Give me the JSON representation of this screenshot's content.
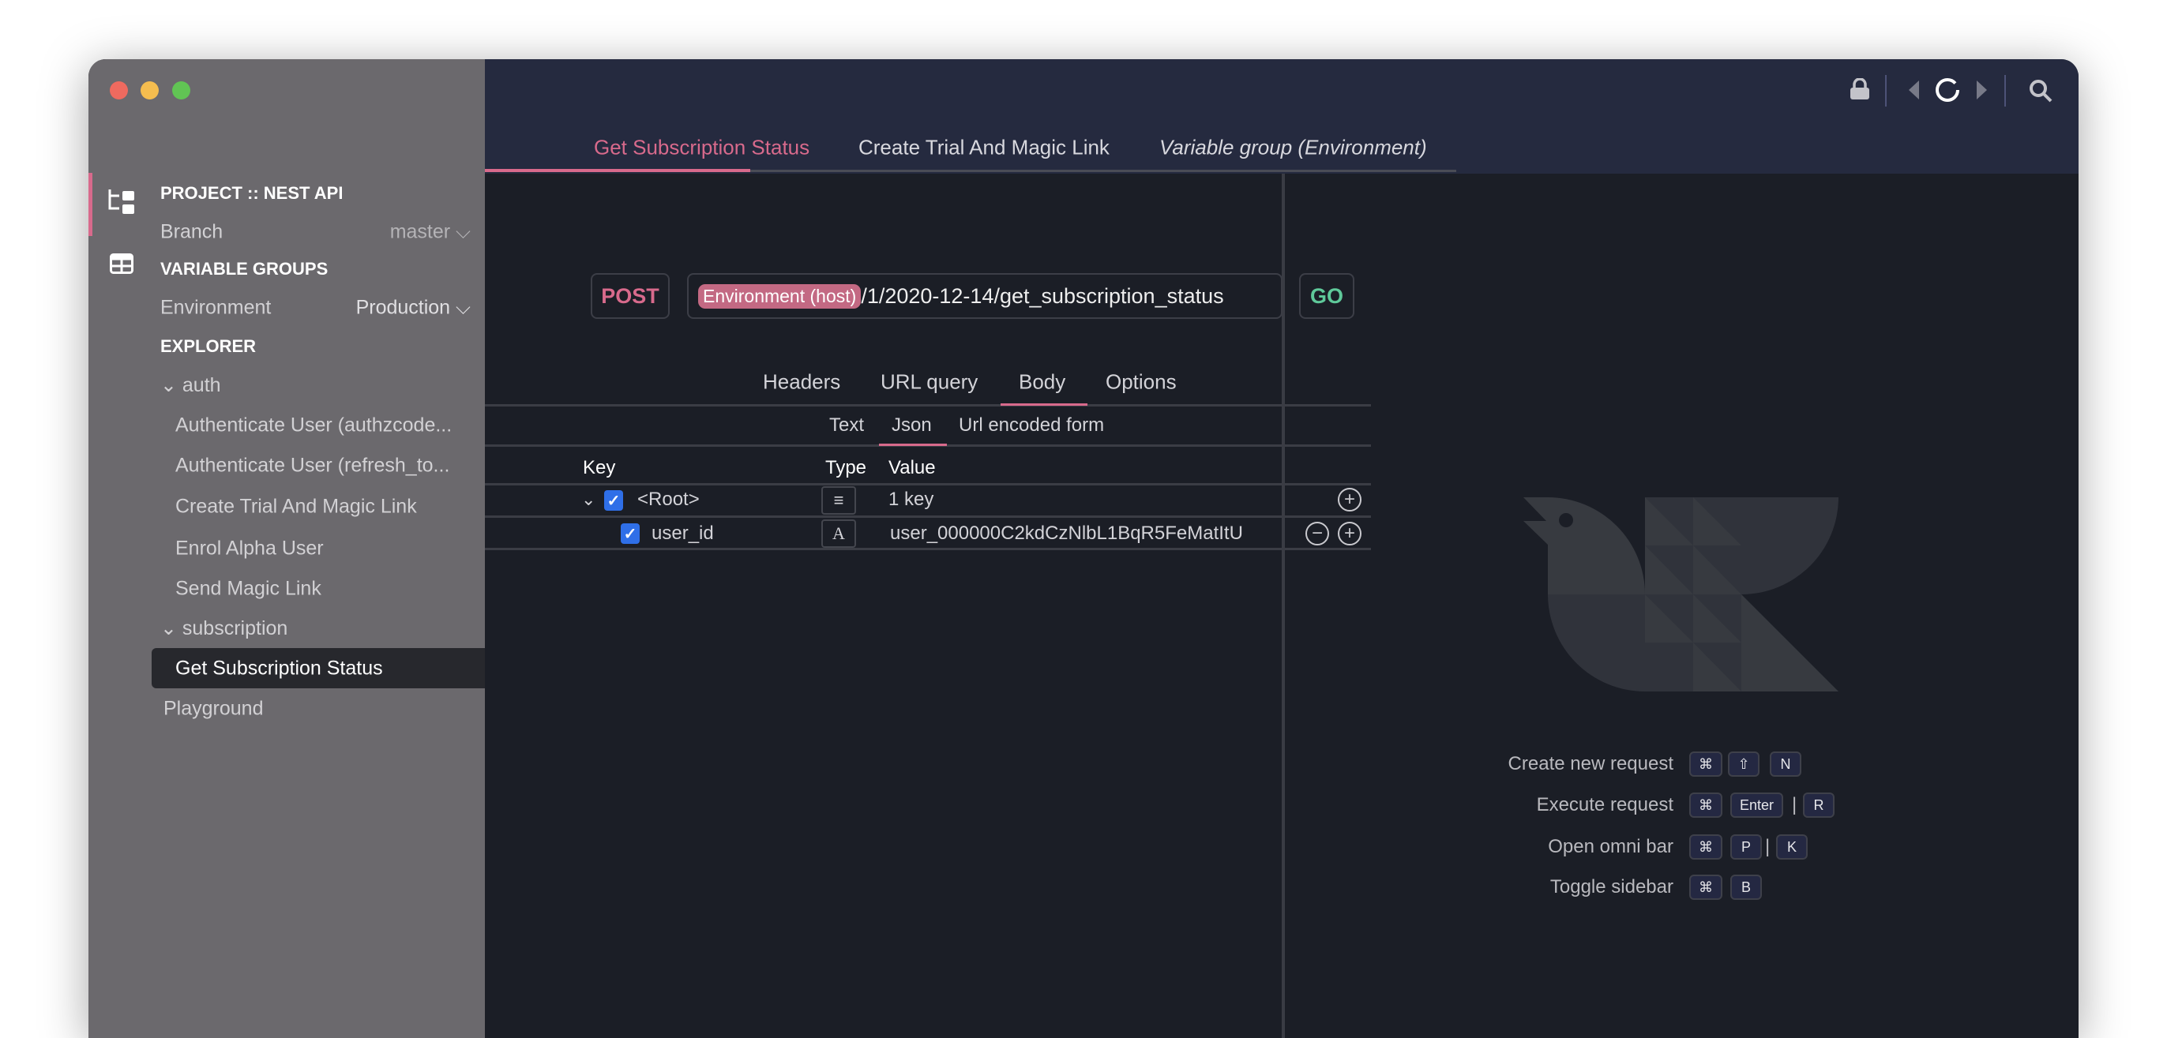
{
  "window": {
    "controls": [
      "close",
      "minimize",
      "zoom"
    ]
  },
  "sidebar": {
    "project_title": "PROJECT :: NEST API",
    "branch_label": "Branch",
    "branch_value": "master",
    "variable_groups_title": "VARIABLE GROUPS",
    "environment_label": "Environment",
    "environment_value": "Production",
    "explorer_title": "EXPLORER",
    "folders": [
      {
        "name": "auth",
        "items": [
          "Authenticate User (authzcode...",
          "Authenticate User (refresh_to...",
          "Create Trial And Magic Link",
          "Enrol Alpha User",
          "Send Magic Link"
        ]
      },
      {
        "name": "subscription",
        "items": [
          "Get Subscription Status"
        ]
      }
    ],
    "selected_item": "Get Subscription Status",
    "playground": "Playground"
  },
  "toolbar": {
    "icons": [
      "lock-icon",
      "back-arrow-icon",
      "loading-spinner-icon",
      "forward-arrow-icon",
      "search-icon"
    ]
  },
  "tabs": [
    {
      "label": "Get Subscription Status",
      "active": true
    },
    {
      "label": "Create Trial And Magic Link",
      "active": false
    },
    {
      "label": "Variable group (Environment)",
      "active": false,
      "italic": true
    }
  ],
  "request": {
    "method": "POST",
    "url_variable": "Environment (host)",
    "url_path": "/1/2020-12-14/get_subscription_status",
    "go_label": "GO"
  },
  "request_tabs": [
    "Headers",
    "URL query",
    "Body",
    "Options"
  ],
  "active_request_tab": "Body",
  "body_tabs": [
    "Text",
    "Json",
    "Url encoded form"
  ],
  "active_body_tab": "Json",
  "table": {
    "headers": [
      "Key",
      "Type",
      "Value"
    ],
    "rows": [
      {
        "key": "<Root>",
        "type_icon": "≡",
        "value": "1 key",
        "checked": true
      },
      {
        "key": "user_id",
        "type_icon": "A",
        "value": "user_000000C2kdCzNlbL1BqR5FeMatItU",
        "checked": true
      }
    ]
  },
  "shortcuts": [
    {
      "label": "Create new request",
      "keys": [
        "⌘",
        "⇧",
        "N"
      ]
    },
    {
      "label": "Execute request",
      "keys": [
        "⌘",
        "Enter",
        "|",
        "R"
      ]
    },
    {
      "label": "Open omni bar",
      "keys": [
        "⌘",
        "P",
        "|",
        "K"
      ]
    },
    {
      "label": "Toggle sidebar",
      "keys": [
        "⌘",
        "B"
      ]
    }
  ],
  "colors": {
    "accent": "#d86a8c",
    "go": "#5fc99a",
    "header": "#252a3f",
    "main": "#1b1e26",
    "sidebar": "#6b696d",
    "checkbox": "#2f6fe8"
  }
}
